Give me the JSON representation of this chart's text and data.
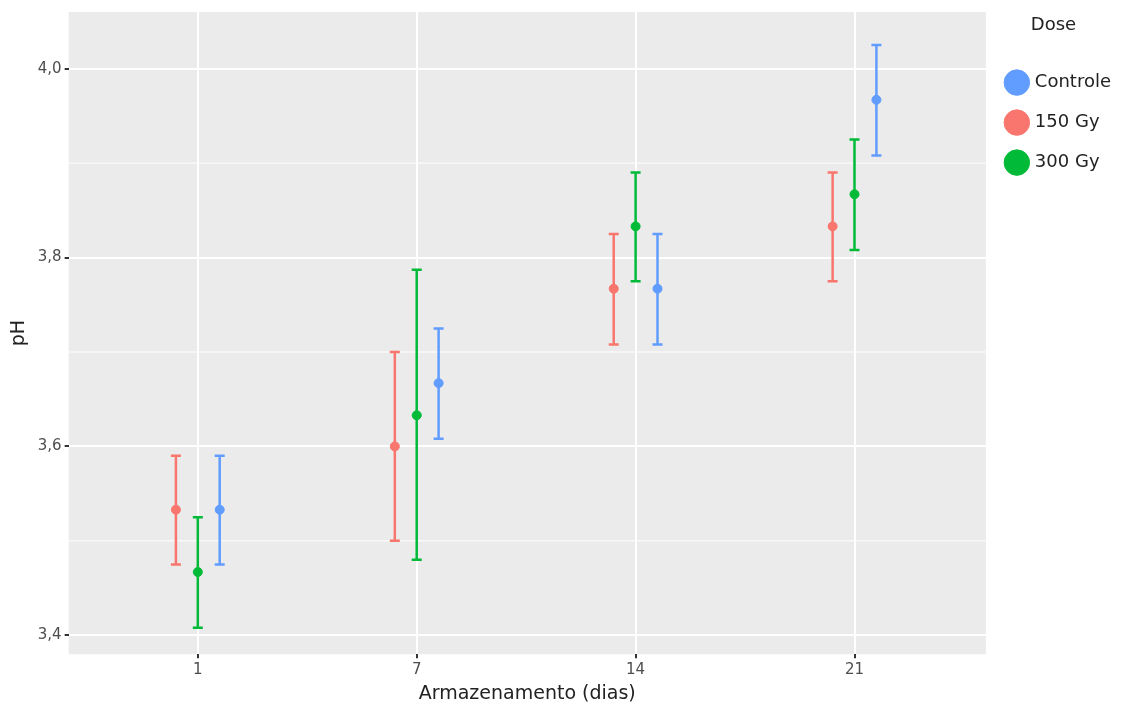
{
  "chart_data": {
    "type": "scatter",
    "xlabel": "Armazenamento (dias)",
    "ylabel": "pH",
    "legend_title": "Dose",
    "categories": [
      "1",
      "7",
      "14",
      "21"
    ],
    "series": [
      {
        "name": "Controle",
        "color": "#619cff",
        "values": [
          3.533,
          3.667,
          3.767,
          3.967
        ],
        "errors": [
          [
            3.475,
            3.59
          ],
          [
            3.608,
            3.725
          ],
          [
            3.708,
            3.825
          ],
          [
            3.908,
            4.025
          ]
        ]
      },
      {
        "name": "150 Gy",
        "color": "#f8766d",
        "values": [
          3.533,
          3.6,
          3.767,
          3.833
        ],
        "errors": [
          [
            3.475,
            3.59
          ],
          [
            3.5,
            3.7
          ],
          [
            3.708,
            3.825
          ],
          [
            3.775,
            3.89
          ]
        ]
      },
      {
        "name": "300 Gy",
        "color": "#00ba38",
        "values": [
          3.467,
          3.633,
          3.833,
          3.867
        ],
        "errors": [
          [
            3.408,
            3.525
          ],
          [
            3.48,
            3.787
          ],
          [
            3.775,
            3.89
          ],
          [
            3.808,
            3.925
          ]
        ]
      }
    ],
    "ylim": [
      3.38,
      4.06
    ],
    "yticks": [
      {
        "value": 3.4,
        "label": "3,4"
      },
      {
        "value": 3.6,
        "label": "3,6"
      },
      {
        "value": 3.8,
        "label": "3,8"
      },
      {
        "value": 4.0,
        "label": "4,0"
      }
    ],
    "grid": true,
    "legend": "right",
    "marker": "circle"
  }
}
